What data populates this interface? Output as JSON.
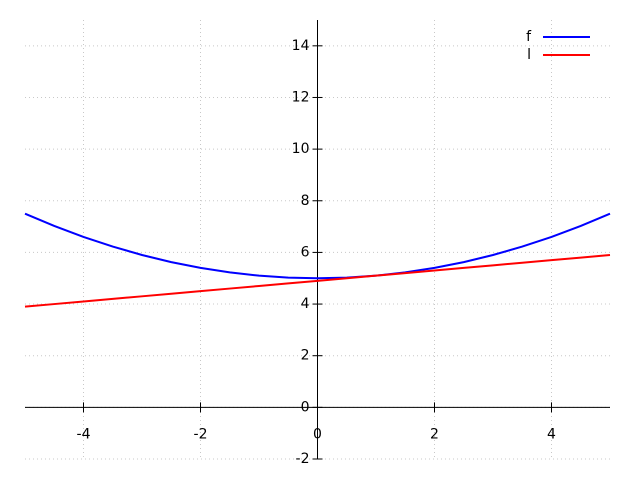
{
  "chart_data": {
    "type": "line",
    "x": [
      -5,
      -4.5,
      -4,
      -3.5,
      -3,
      -2.5,
      -2,
      -1.5,
      -1,
      -0.5,
      0,
      0.5,
      1,
      1.5,
      2,
      2.5,
      3,
      3.5,
      4,
      4.5,
      5
    ],
    "series": [
      {
        "name": "f",
        "color": "#0000ff",
        "values": [
          7.5,
          7.025,
          6.6,
          6.225,
          5.9,
          5.625,
          5.4,
          5.225,
          5.1,
          5.025,
          5,
          5.025,
          5.1,
          5.225,
          5.4,
          5.625,
          5.9,
          6.225,
          6.6,
          7.025,
          7.5
        ]
      },
      {
        "name": "l",
        "color": "#ff0000",
        "values": [
          3.9,
          4,
          4.1,
          4.2,
          4.3,
          4.4,
          4.5,
          4.6,
          4.7,
          4.8,
          4.9,
          5.0,
          5.1,
          5.2,
          5.3,
          5.4,
          5.5,
          5.6,
          5.7,
          5.8,
          5.9
        ]
      }
    ],
    "xlim": [
      -5,
      5
    ],
    "ylim": [
      -2,
      15
    ],
    "xticks": [
      -4,
      -2,
      0,
      2,
      4
    ],
    "yticks": [
      -2,
      0,
      2,
      4,
      6,
      8,
      10,
      12,
      14
    ],
    "grid": true,
    "legend": "upper right"
  }
}
